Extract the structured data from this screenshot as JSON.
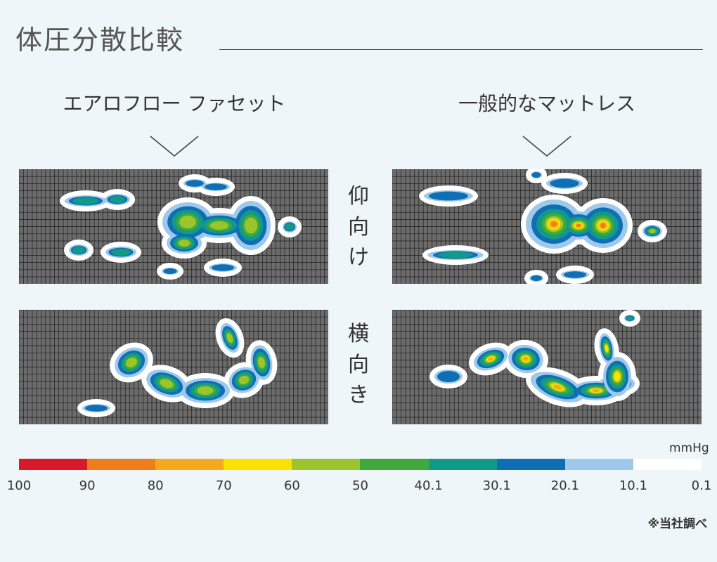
{
  "title": "体圧分散比較",
  "columns": [
    {
      "label": "エアロフロー ファセット"
    },
    {
      "label": "一般的なマットレス"
    }
  ],
  "rows": [
    {
      "label_chars": [
        "仰",
        "向",
        "け"
      ]
    },
    {
      "label_chars": [
        "横",
        "向",
        "き"
      ]
    }
  ],
  "legend": {
    "unit": "mmHg",
    "colors": [
      "#d7192a",
      "#ee7d1b",
      "#f5a91d",
      "#fde100",
      "#9cc42d",
      "#3fa93b",
      "#129a88",
      "#0f6fb5",
      "#9fc9ea",
      "#ffffff"
    ],
    "ticks": [
      "100",
      "90",
      "80",
      "70",
      "60",
      "50",
      "40.1",
      "30.1",
      "20.1",
      "10.1",
      "0.1"
    ]
  },
  "note": "※当社調べ",
  "colors": {
    "background": "#eef6f9",
    "grid_bg": "#6b6b6b",
    "grid_line": "#1c1c1c"
  }
}
